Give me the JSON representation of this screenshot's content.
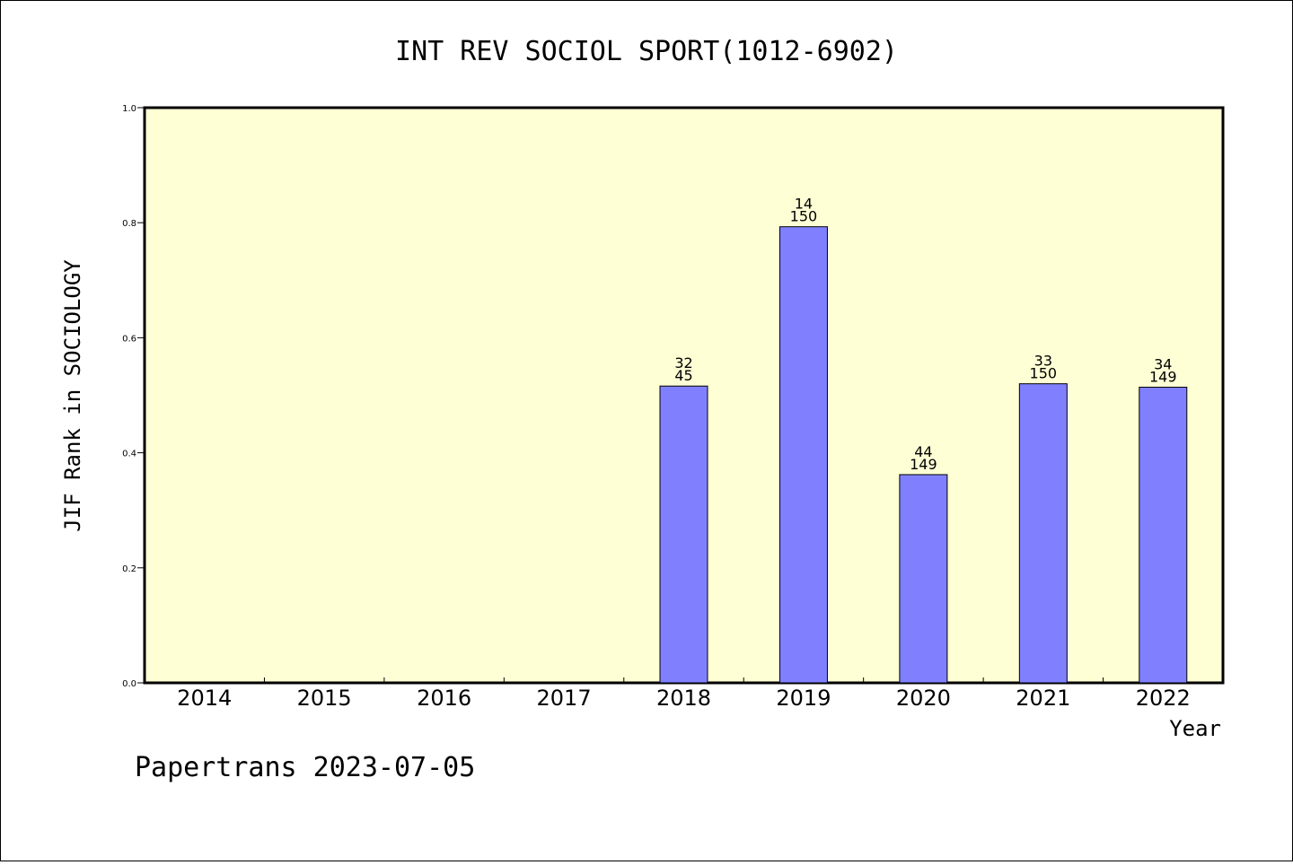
{
  "footer": "Papertrans 2023-07-05",
  "chart_data": {
    "type": "bar",
    "title": "INT REV SOCIOL SPORT(1012-6902)",
    "xlabel": "Year",
    "ylabel": "JIF Rank in SOCIOLOGY",
    "ylim": [
      0,
      1.0
    ],
    "yticks": [
      "0.0",
      "0.2",
      "0.4",
      "0.6",
      "0.8",
      "1.0"
    ],
    "categories": [
      "2014",
      "2015",
      "2016",
      "2017",
      "2018",
      "2019",
      "2020",
      "2021",
      "2022"
    ],
    "values": [
      null,
      null,
      null,
      null,
      0.516,
      0.793,
      0.362,
      0.52,
      0.514
    ],
    "labels": [
      null,
      null,
      null,
      null,
      {
        "rank": "32",
        "total": "45"
      },
      {
        "rank": "14",
        "total": "150"
      },
      {
        "rank": "44",
        "total": "149"
      },
      {
        "rank": "33",
        "total": "150"
      },
      {
        "rank": "34",
        "total": "149"
      }
    ],
    "colors": {
      "plot_bg": "#ffffd5",
      "bar": "#8080ff",
      "bar_edge": "#000000"
    },
    "grid": false,
    "legend": "none"
  }
}
